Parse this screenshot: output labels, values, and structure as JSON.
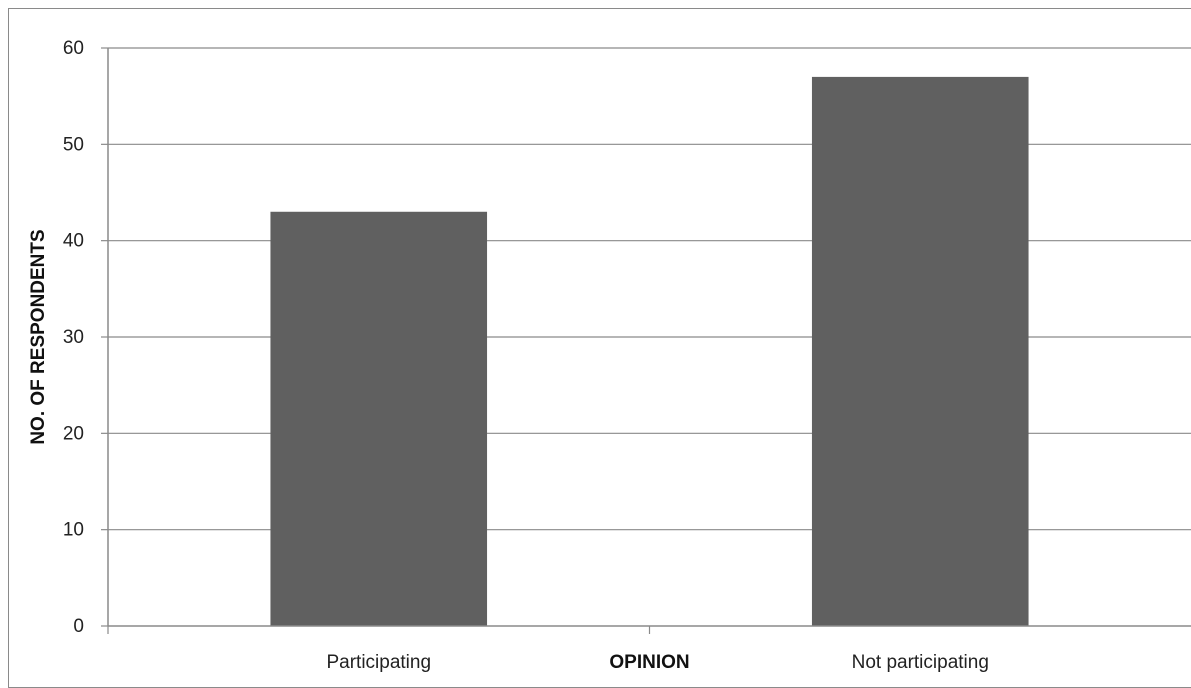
{
  "chart_data": {
    "type": "bar",
    "title": "",
    "categories": [
      "Participating",
      "Not participating"
    ],
    "series": [
      {
        "values": [
          43,
          57
        ],
        "color": "#606060"
      }
    ],
    "xlabel": "OPINION",
    "ylabel": "NO. OF RESPONDENTS",
    "ylim": [
      0,
      60
    ],
    "yticks": [
      0,
      10,
      20,
      30,
      40,
      50,
      60
    ],
    "grid": true,
    "legend": "none"
  }
}
